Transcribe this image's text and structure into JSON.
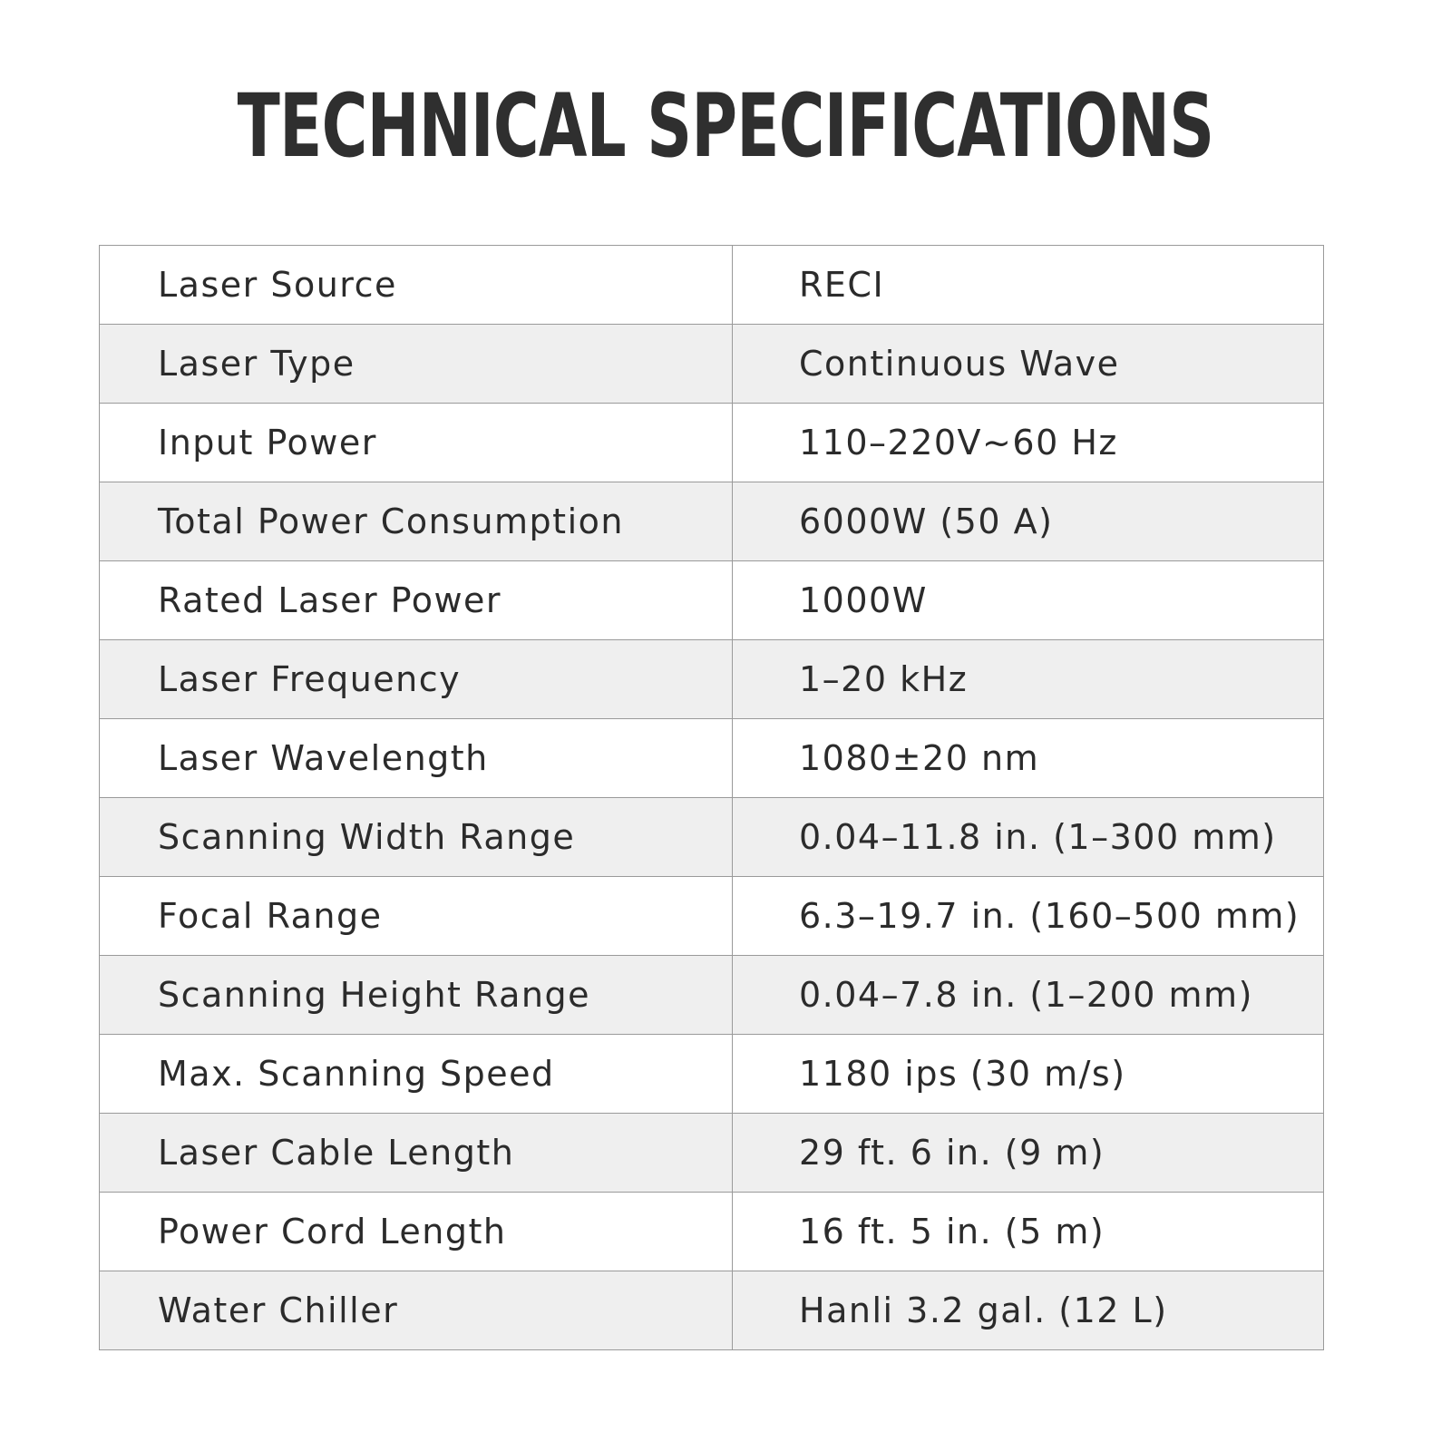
{
  "title": "TECHNICAL SPECIFICATIONS",
  "colors": {
    "row_shade": "#efefef",
    "border": "#9a9a9a",
    "text": "#2b2b2b"
  },
  "specs": [
    {
      "label": "Laser Source",
      "value": "RECI"
    },
    {
      "label": "Laser Type",
      "value": "Continuous Wave"
    },
    {
      "label": "Input Power",
      "value": "110–220V~60 Hz"
    },
    {
      "label": "Total Power Consumption",
      "value": "6000W (50 A)"
    },
    {
      "label": "Rated Laser Power",
      "value": "1000W"
    },
    {
      "label": "Laser Frequency",
      "value": "1–20 kHz"
    },
    {
      "label": "Laser Wavelength",
      "value": "1080±20 nm"
    },
    {
      "label": "Scanning Width Range",
      "value": "0.04–11.8 in. (1–300 mm)"
    },
    {
      "label": "Focal Range",
      "value": "6.3–19.7 in. (160–500 mm)"
    },
    {
      "label": "Scanning Height Range",
      "value": "0.04–7.8 in. (1–200 mm)"
    },
    {
      "label": "Max. Scanning Speed",
      "value": "1180 ips (30 m/s)"
    },
    {
      "label": "Laser Cable Length",
      "value": "29 ft. 6 in. (9 m)"
    },
    {
      "label": "Power Cord Length",
      "value": "16 ft. 5 in. (5 m)"
    },
    {
      "label": "Water Chiller",
      "value": "Hanli 3.2 gal. (12 L)"
    }
  ]
}
